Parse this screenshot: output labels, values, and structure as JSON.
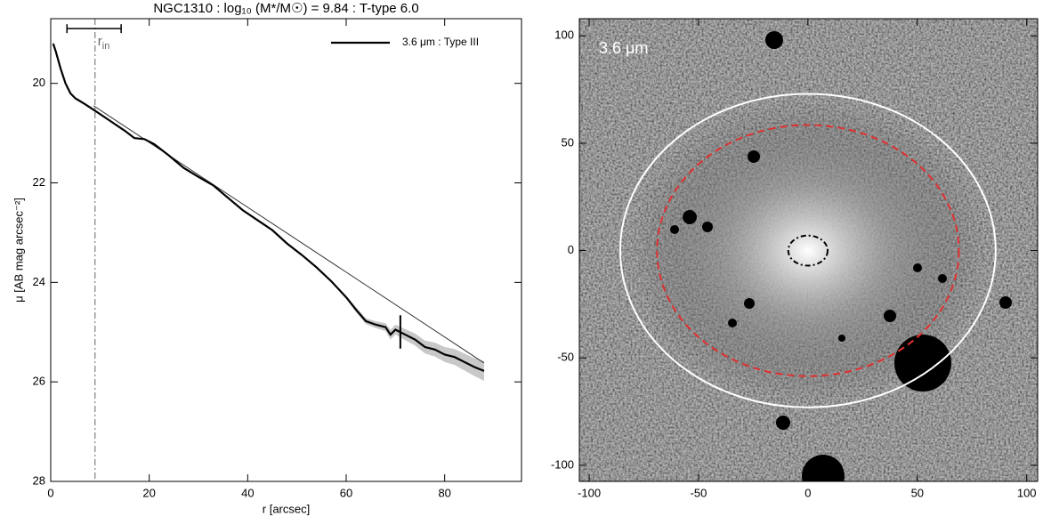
{
  "chart_data": [
    {
      "type": "line",
      "title": "NGC1310 : log₁₀ (M*/M☉) = 9.84 : T-type 6.0",
      "x_label": "r [arcsec]",
      "y_label": "μ [AB mag arcsec⁻²]",
      "xlim": [
        0,
        95.6
      ],
      "ylim": [
        28,
        18.7
      ],
      "xticks": [
        0,
        20,
        40,
        60,
        80
      ],
      "yticks": [
        20,
        22,
        24,
        26,
        28
      ],
      "series": [
        {
          "name": "3.6 μm : Type III",
          "color": "#000000",
          "x": [
            0.5,
            1,
            2,
            3,
            4,
            5,
            7,
            9,
            12,
            15,
            17,
            19,
            21,
            24,
            27,
            30,
            33,
            36,
            39,
            42,
            45,
            48,
            51,
            54,
            57,
            60,
            62,
            64,
            66,
            68,
            69,
            70,
            72,
            74,
            76,
            78,
            80,
            82,
            84,
            86,
            88
          ],
          "values": [
            19.2,
            19.35,
            19.7,
            20.0,
            20.2,
            20.3,
            20.42,
            20.55,
            20.75,
            20.95,
            21.1,
            21.12,
            21.22,
            21.45,
            21.7,
            21.88,
            22.05,
            22.3,
            22.55,
            22.75,
            22.95,
            23.22,
            23.45,
            23.7,
            23.98,
            24.3,
            24.55,
            24.78,
            24.85,
            24.9,
            25.05,
            24.95,
            25.05,
            25.15,
            25.3,
            25.35,
            25.45,
            25.5,
            25.6,
            25.7,
            25.78
          ],
          "errors": [
            0,
            0,
            0,
            0,
            0,
            0,
            0,
            0,
            0,
            0,
            0,
            0,
            0,
            0,
            0,
            0,
            0,
            0,
            0,
            0,
            0,
            0,
            0,
            0,
            0,
            0.03,
            0.05,
            0.06,
            0.07,
            0.08,
            0.1,
            0.1,
            0.11,
            0.12,
            0.13,
            0.14,
            0.15,
            0.16,
            0.17,
            0.18,
            0.2
          ]
        }
      ],
      "fit": {
        "x": [
          8.7,
          88
        ],
        "values": [
          20.45,
          25.62
        ],
        "color": "#333333"
      },
      "rin": {
        "x": 9,
        "label": "r",
        "sub": "in"
      },
      "break_marker": {
        "x": 71,
        "values": [
          24.66,
          25.33
        ]
      },
      "scale_bar": {
        "x": [
          3.3,
          14.3
        ],
        "y": 18.9
      }
    },
    {
      "type": "image",
      "label": "3.6 μm",
      "xlim": [
        -104.5,
        105
      ],
      "ylim": [
        -107.5,
        108
      ],
      "xticks": [
        -100,
        -50,
        0,
        50,
        100
      ],
      "yticks": [
        -100,
        -50,
        0,
        50,
        100
      ],
      "ellipses": [
        {
          "rx": 85.8,
          "ry": 73,
          "color": "#ffffff",
          "dash": "none"
        },
        {
          "rx": 69,
          "ry": 58.5,
          "color": "#e03030",
          "dash": "8 5"
        },
        {
          "rx": 9,
          "ry": 7,
          "color": "#000000",
          "dash": "6 3 2 3"
        }
      ]
    }
  ]
}
